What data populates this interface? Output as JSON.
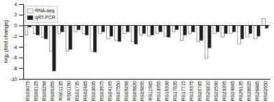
{
  "chart_data": {
    "type": "bar",
    "categories": [
      "RS00079",
      "RS00125",
      "RS00298",
      "RS00355",
      "RS01135",
      "RS01150",
      "RS01735",
      "RS02485",
      "RS03635",
      "RS03975",
      "RS04195",
      "RS07550",
      "RS09298",
      "RS09820",
      "RS09895",
      "RS11985",
      "RS13955",
      "RS16338",
      "RS17635",
      "RS17715",
      "RS19375",
      "RS20785",
      "RS20810",
      "RS22590",
      "RS23395",
      "RS24845",
      "RS26135",
      "RS26625",
      "RS26885",
      "RS02950"
    ],
    "series": [
      {
        "name": "RNA-seq",
        "color": "#ffffff",
        "values": [
          -1.8,
          -1.5,
          -2.2,
          -4.8,
          -1.5,
          -4.8,
          -1.2,
          -1.5,
          -4.8,
          -1.5,
          -2.5,
          -2.8,
          -1.5,
          -3.0,
          -1.8,
          -2.0,
          -1.5,
          -2.0,
          -1.2,
          -2.8,
          -1.5,
          -3.0,
          -6.2,
          -1.5,
          -2.2,
          -1.5,
          -3.5,
          -2.2,
          -2.5,
          1.3
        ]
      },
      {
        "name": "qRT-PCR",
        "color": "#1a1a1a",
        "values": [
          -0.3,
          -1.8,
          -2.5,
          -8.5,
          -1.2,
          -4.5,
          -0.8,
          -1.8,
          -5.0,
          -1.2,
          -2.0,
          -3.0,
          -1.2,
          -3.5,
          -1.5,
          -1.8,
          -1.2,
          -2.2,
          -0.8,
          -1.8,
          -1.2,
          -2.8,
          -4.2,
          -1.2,
          -1.5,
          -1.2,
          -2.5,
          -1.5,
          -2.0,
          -0.5
        ]
      }
    ],
    "ylabel": "log₂ (fold change)",
    "ylim": [
      -10,
      4
    ],
    "yticks": [
      -10,
      -8,
      -6,
      -4,
      -2,
      0,
      2,
      4
    ],
    "grid": false,
    "legend": "upper left"
  }
}
